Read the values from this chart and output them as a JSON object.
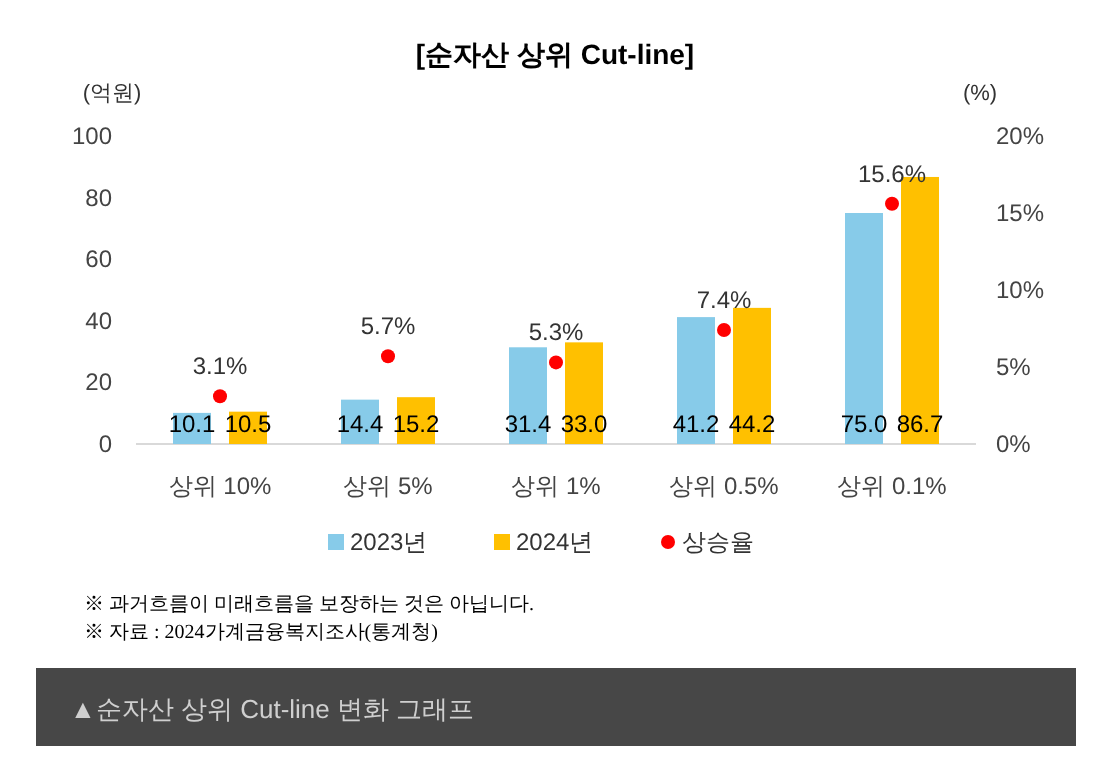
{
  "chart_data": {
    "type": "bar",
    "title": "[순자산 상위 Cut-line]",
    "ylabel": "(억원)",
    "y2label": "(%)",
    "categories": [
      "상위 10%",
      "상위 5%",
      "상위 1%",
      "상위 0.5%",
      "상위 0.1%"
    ],
    "series": [
      {
        "name": "2023년",
        "color": "#87cbe9",
        "values": [
          10.1,
          14.4,
          31.4,
          41.2,
          75.0
        ],
        "value_labels": [
          "10.1",
          "14.4",
          "31.4",
          "41.2",
          "75.0"
        ]
      },
      {
        "name": "2024년",
        "color": "#ffc000",
        "values": [
          10.5,
          15.2,
          33.0,
          44.2,
          86.7
        ],
        "value_labels": [
          "10.5",
          "15.2",
          "33.0",
          "44.2",
          "86.7"
        ]
      },
      {
        "name": "상승율",
        "type": "scatter",
        "axis": "y2",
        "marker": "circle",
        "color": "#ff0000",
        "values": [
          3.1,
          5.7,
          5.3,
          7.4,
          15.6
        ],
        "value_labels": [
          "3.1%",
          "5.7%",
          "5.3%",
          "7.4%",
          "15.6%"
        ]
      }
    ],
    "ylim": [
      0,
      100
    ],
    "yticks": [
      0,
      20,
      40,
      60,
      80,
      100
    ],
    "y2lim": [
      0,
      20
    ],
    "y2ticks": [
      {
        "value": 0,
        "label": "0%"
      },
      {
        "value": 5,
        "label": "5%"
      },
      {
        "value": 10,
        "label": "10%"
      },
      {
        "value": 15,
        "label": "15%"
      },
      {
        "value": 20,
        "label": "20%"
      }
    ],
    "grid": false,
    "legend": "bottom",
    "annotations": [
      "※ 과거흐름이 미래흐름을 보장하는 것은 아닙니다.",
      "※ 자료 : 2024가계금융복지조사(통계청)",
      "▲순자산 상위 Cut-line 변화 그래프"
    ]
  }
}
